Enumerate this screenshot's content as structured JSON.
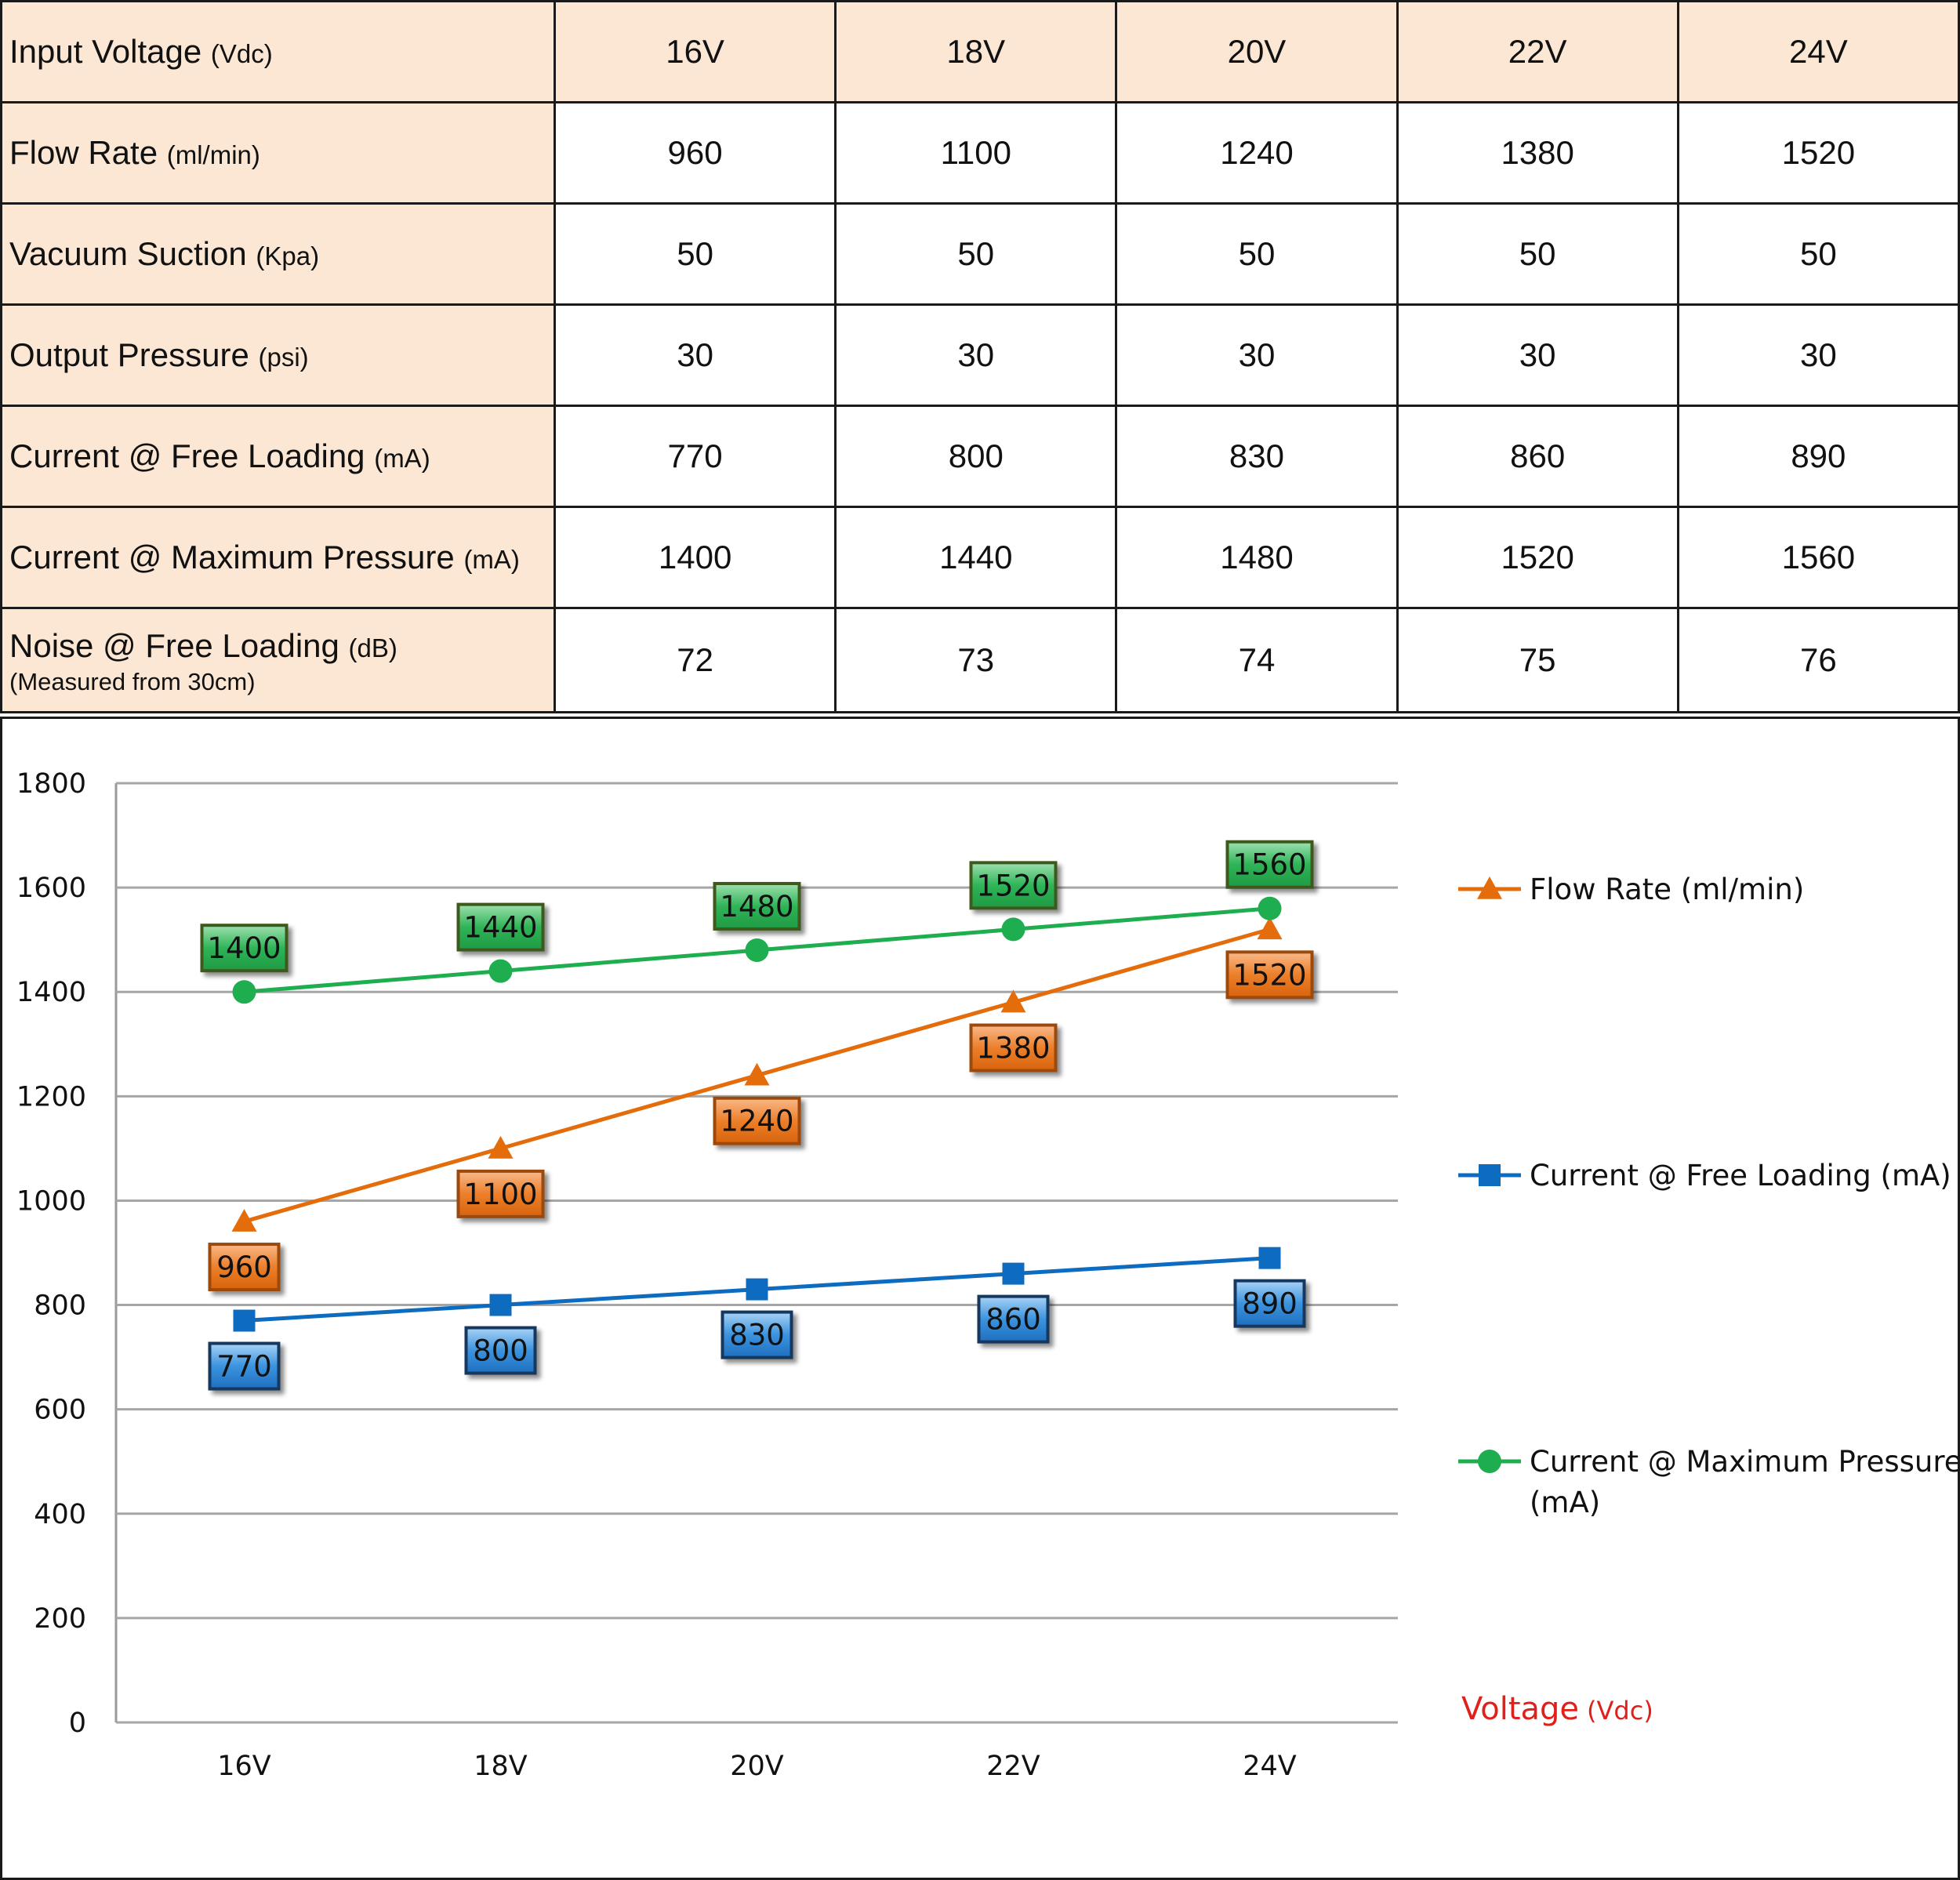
{
  "table": {
    "header": {
      "label": "Input Voltage",
      "unit": "(Vdc)",
      "values": [
        "16V",
        "18V",
        "20V",
        "22V",
        "24V"
      ]
    },
    "rows": [
      {
        "label": "Flow Rate",
        "unit": "(ml/min)",
        "values": [
          "960",
          "1100",
          "1240",
          "1380",
          "1520"
        ]
      },
      {
        "label": "Vacuum Suction",
        "unit": "(Kpa)",
        "values": [
          "50",
          "50",
          "50",
          "50",
          "50"
        ]
      },
      {
        "label": "Output Pressure",
        "unit": "(psi)",
        "values": [
          "30",
          "30",
          "30",
          "30",
          "30"
        ]
      },
      {
        "label": "Current @ Free Loading",
        "unit": "(mA)",
        "values": [
          "770",
          "800",
          "830",
          "860",
          "890"
        ]
      },
      {
        "label": "Current @ Maximum Pressure",
        "unit": "(mA)",
        "values": [
          "1400",
          "1440",
          "1480",
          "1520",
          "1560"
        ]
      },
      {
        "label": "Noise @ Free Loading",
        "unit": "(dB)",
        "note": "(Measured from 30cm)",
        "values": [
          "72",
          "73",
          "74",
          "75",
          "76"
        ]
      }
    ]
  },
  "chart_data": {
    "type": "line",
    "title": "",
    "categories": [
      "16V",
      "18V",
      "20V",
      "22V",
      "24V"
    ],
    "xlabel": "Voltage",
    "xlabel_unit": "(Vdc)",
    "ylabel": "",
    "ylim": [
      0,
      1800
    ],
    "yticks": [
      0,
      200,
      400,
      600,
      800,
      1000,
      1200,
      1400,
      1600,
      1800
    ],
    "grid": true,
    "legend_position": "right",
    "series": [
      {
        "name": "Flow Rate (ml/min)",
        "legend_lines": [
          "Flow Rate (ml/min)"
        ],
        "marker": "triangle",
        "color": "#e46c0a",
        "label_fill": "#e8761c",
        "label_border": "#9c4a0c",
        "label_pos": "below",
        "values": [
          960,
          1100,
          1240,
          1380,
          1520
        ]
      },
      {
        "name": "Current @ Free Loading (mA)",
        "legend_lines": [
          "Current @ Free Loading (mA)"
        ],
        "marker": "square",
        "color": "#0e6cc0",
        "label_fill": "#2b86d6",
        "label_border": "#17375e",
        "label_pos": "below",
        "values": [
          770,
          800,
          830,
          860,
          890
        ]
      },
      {
        "name": "Current @ Maximum Pressure (mA)",
        "legend_lines": [
          "Current @ Maximum Pressure",
          "(mA)"
        ],
        "marker": "circle",
        "color": "#1fae4f",
        "label_fill": "#27b050",
        "label_border": "#3c5a1e",
        "label_pos": "above",
        "values": [
          1400,
          1440,
          1480,
          1520,
          1560
        ]
      }
    ]
  }
}
